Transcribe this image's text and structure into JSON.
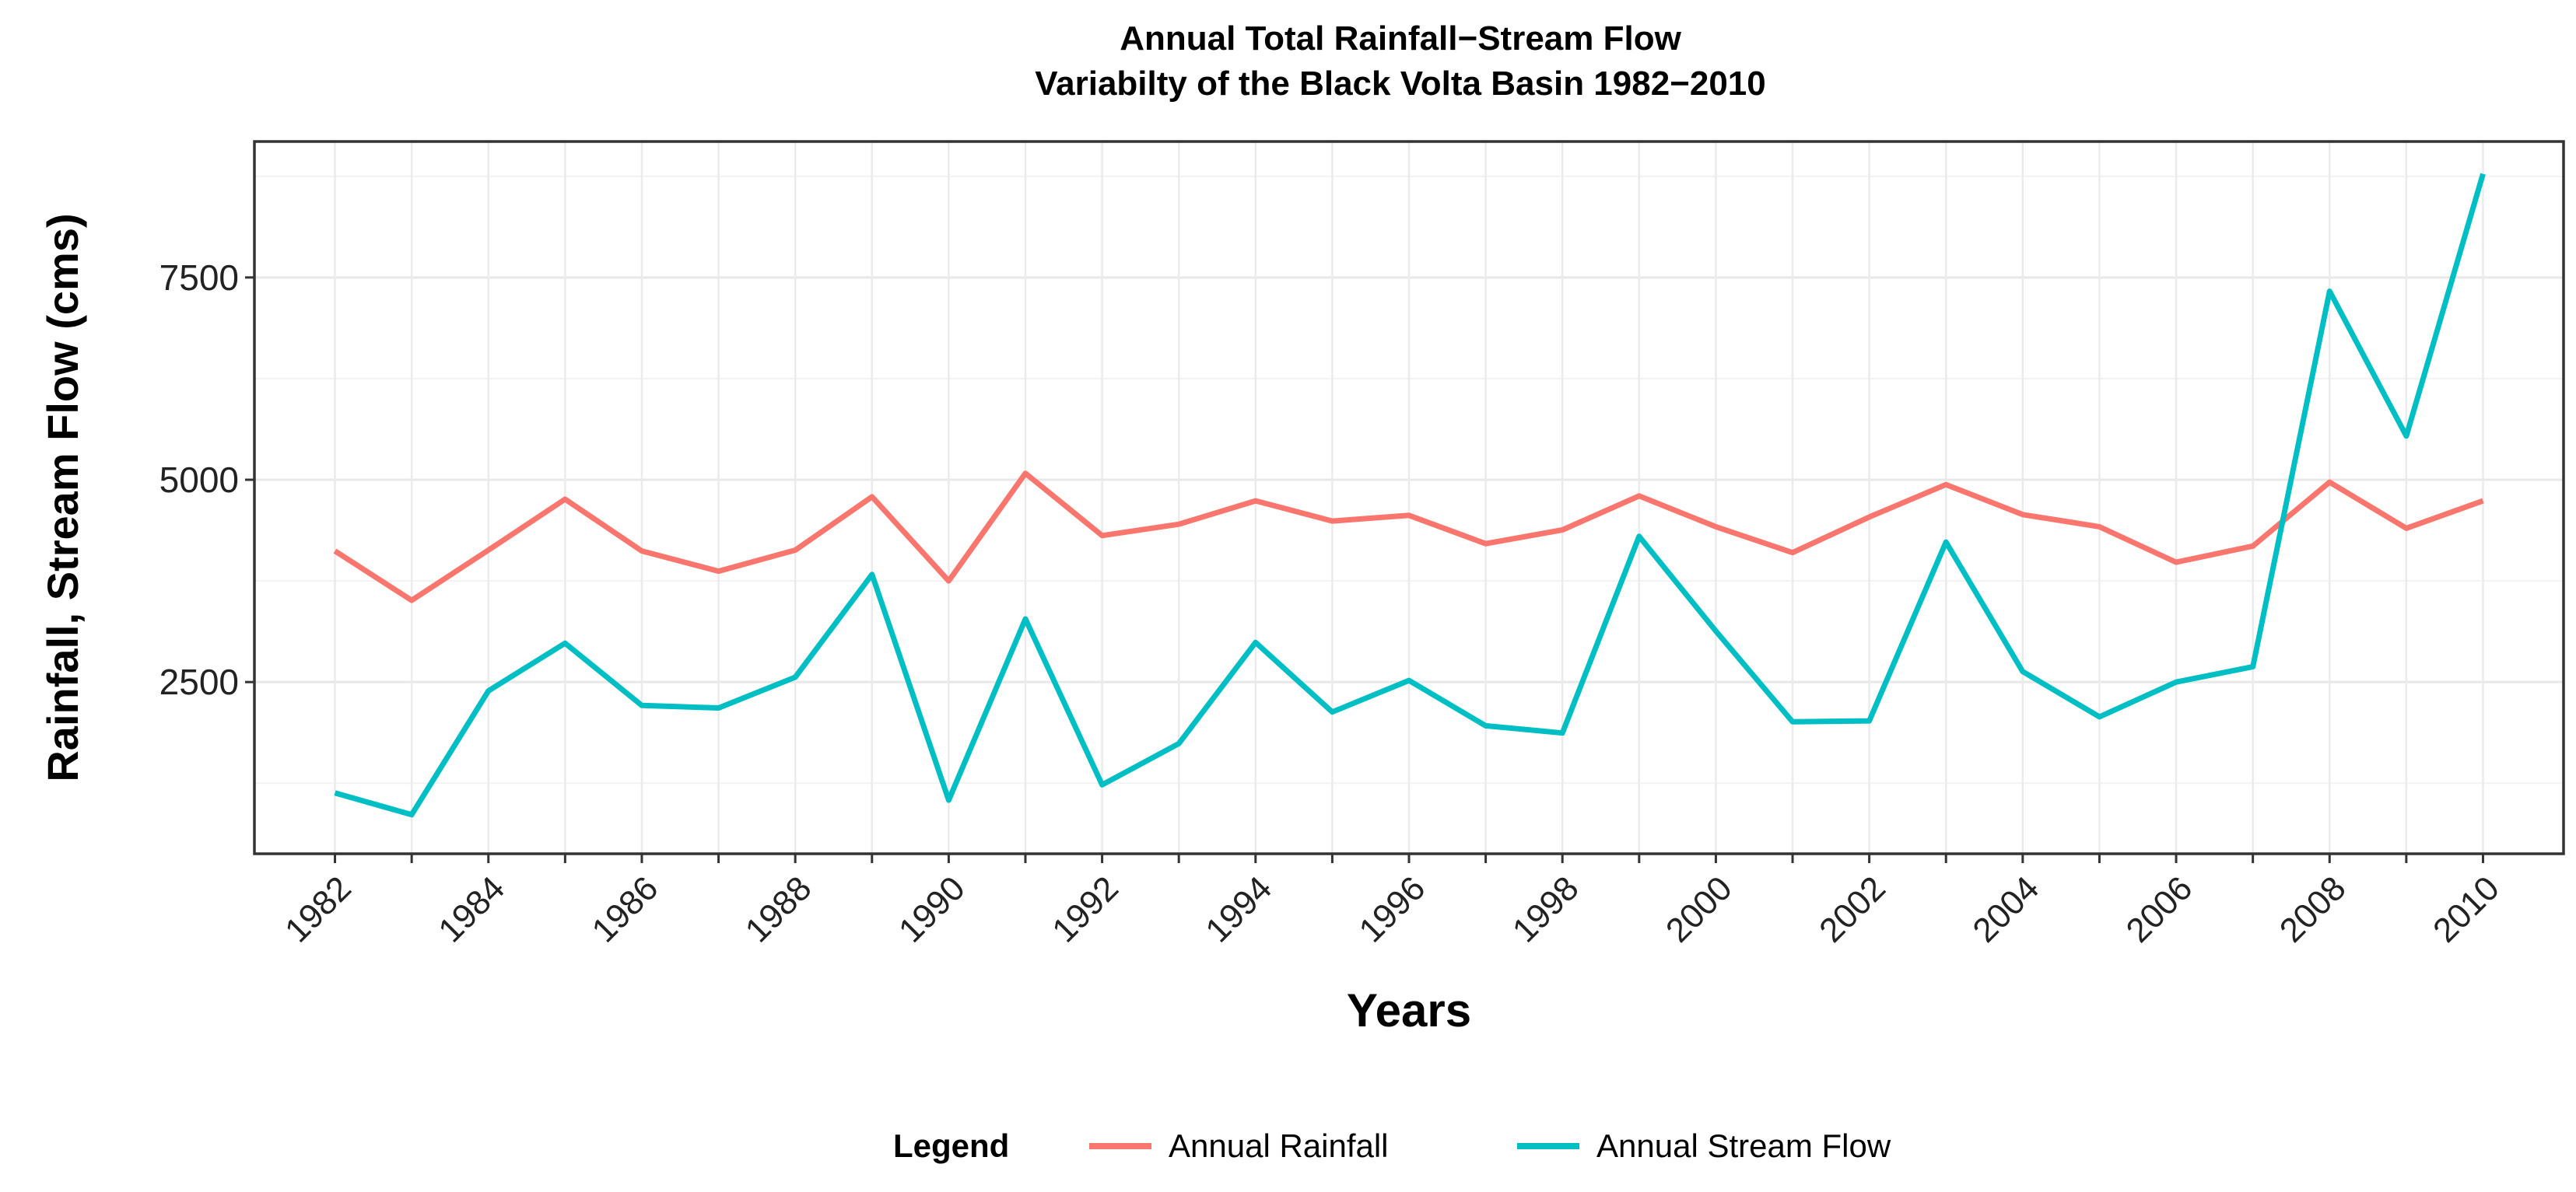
{
  "chart_data": {
    "type": "line",
    "title_line1": "Annual Total  Rainfall−Stream Flow",
    "title_line2": "Variabilty of the Black Volta Basin 1982−2010",
    "xlabel": "Years",
    "ylabel": "Rainfall, Stream Flow (cms)",
    "x": [
      1982,
      1983,
      1984,
      1985,
      1986,
      1987,
      1988,
      1989,
      1990,
      1991,
      1992,
      1993,
      1994,
      1995,
      1996,
      1997,
      1998,
      1999,
      2000,
      2001,
      2002,
      2003,
      2004,
      2005,
      2006,
      2007,
      2008,
      2009,
      2010
    ],
    "xlim": [
      1980.95,
      2011.05
    ],
    "x_ticks": [
      1982,
      1984,
      1986,
      1988,
      1990,
      1992,
      1994,
      1996,
      1998,
      2000,
      2002,
      2004,
      2006,
      2008,
      2010
    ],
    "x_tick_labels": [
      "1982",
      "1984",
      "1986",
      "1988",
      "1990",
      "1992",
      "1994",
      "1996",
      "1998",
      "2000",
      "2002",
      "2004",
      "2006",
      "2008",
      "2010"
    ],
    "ylim": [
      378,
      9180
    ],
    "y_ticks": [
      2500,
      5000,
      7500
    ],
    "y_tick_labels": [
      "2500",
      "5000",
      "7500"
    ],
    "grid": true,
    "series": [
      {
        "name": "Annual Rainfall",
        "color": "#F8766D",
        "values": [
          4120,
          3510,
          4130,
          4760,
          4120,
          3870,
          4130,
          4790,
          3750,
          5080,
          4310,
          4450,
          4740,
          4490,
          4560,
          4210,
          4380,
          4800,
          4420,
          4100,
          4540,
          4940,
          4570,
          4420,
          3980,
          4180,
          4970,
          4400,
          4740
        ]
      },
      {
        "name": "Annual Stream Flow",
        "color": "#00BFC4",
        "values": [
          1130,
          860,
          2390,
          2980,
          2210,
          2180,
          2560,
          3830,
          1040,
          3280,
          1230,
          1740,
          2990,
          2130,
          2520,
          1960,
          1870,
          4300,
          3130,
          2010,
          2020,
          4230,
          2630,
          2070,
          2500,
          2690,
          7330,
          5540,
          8780
        ]
      }
    ],
    "legend": {
      "title": "Legend",
      "position": "bottom",
      "labels": [
        "Annual Rainfall",
        "Annual Stream Flow"
      ]
    }
  }
}
